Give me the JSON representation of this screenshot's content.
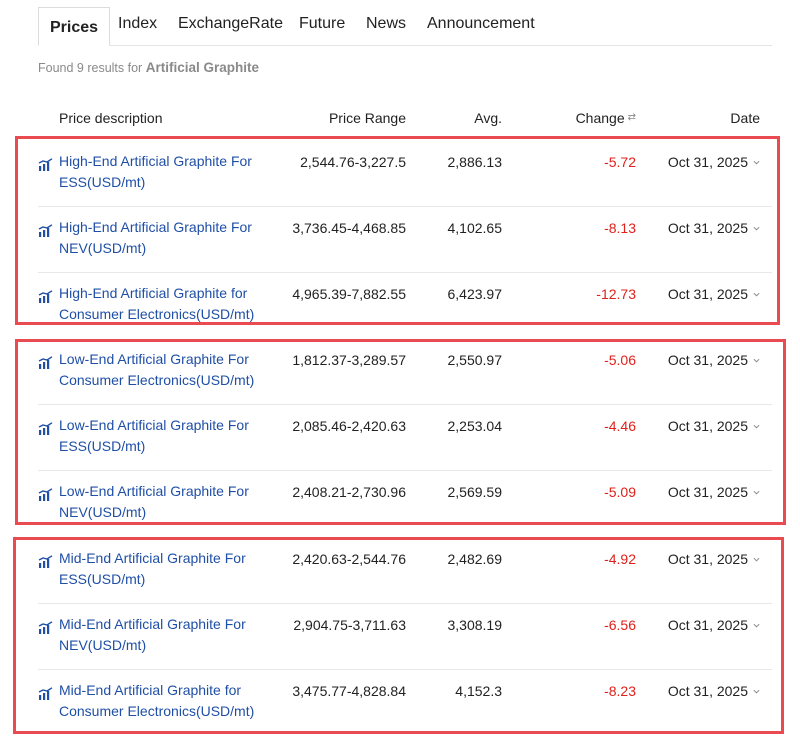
{
  "tabs": [
    {
      "label": "Prices",
      "active": true
    },
    {
      "label": "Index"
    },
    {
      "label": "ExchangeRate"
    },
    {
      "label": "Future"
    },
    {
      "label": "News"
    },
    {
      "label": "Announcement"
    }
  ],
  "result": {
    "prefix": "Found 9 results for",
    "query": "Artificial Graphite"
  },
  "columns": {
    "description": "Price description",
    "range": "Price Range",
    "avg": "Avg.",
    "change": "Change",
    "date": "Date"
  },
  "colors": {
    "link": "#1f4fa6",
    "negative": "#e0201b",
    "highlight": "#ea4b50"
  },
  "rows": [
    {
      "description": "High-End Artificial Graphite For ESS(USD/mt)",
      "range": "2,544.76-3,227.5",
      "avg": "2,886.13",
      "change": "-5.72",
      "date": "Oct 31, 2025"
    },
    {
      "description": "High-End Artificial Graphite For NEV(USD/mt)",
      "range": "3,736.45-4,468.85",
      "avg": "4,102.65",
      "change": "-8.13",
      "date": "Oct 31, 2025"
    },
    {
      "description": "High-End Artificial Graphite for Consumer Electronics(USD/mt)",
      "range": "4,965.39-7,882.55",
      "avg": "6,423.97",
      "change": "-12.73",
      "date": "Oct 31, 2025"
    },
    {
      "description": "Low-End Artificial Graphite For Consumer Electronics(USD/mt)",
      "range": "1,812.37-3,289.57",
      "avg": "2,550.97",
      "change": "-5.06",
      "date": "Oct 31, 2025"
    },
    {
      "description": "Low-End Artificial Graphite For ESS(USD/mt)",
      "range": "2,085.46-2,420.63",
      "avg": "2,253.04",
      "change": "-4.46",
      "date": "Oct 31, 2025"
    },
    {
      "description": "Low-End Artificial Graphite For NEV(USD/mt)",
      "range": "2,408.21-2,730.96",
      "avg": "2,569.59",
      "change": "-5.09",
      "date": "Oct 31, 2025"
    },
    {
      "description": "Mid-End Artificial Graphite For ESS(USD/mt)",
      "range": "2,420.63-2,544.76",
      "avg": "2,482.69",
      "change": "-4.92",
      "date": "Oct 31, 2025"
    },
    {
      "description": "Mid-End Artificial Graphite For NEV(USD/mt)",
      "range": "2,904.75-3,711.63",
      "avg": "3,308.19",
      "change": "-6.56",
      "date": "Oct 31, 2025"
    },
    {
      "description": "Mid-End Artificial Graphite for Consumer Electronics(USD/mt)",
      "range": "3,475.77-4,828.84",
      "avg": "4,152.3",
      "change": "-8.23",
      "date": "Oct 31, 2025"
    }
  ]
}
